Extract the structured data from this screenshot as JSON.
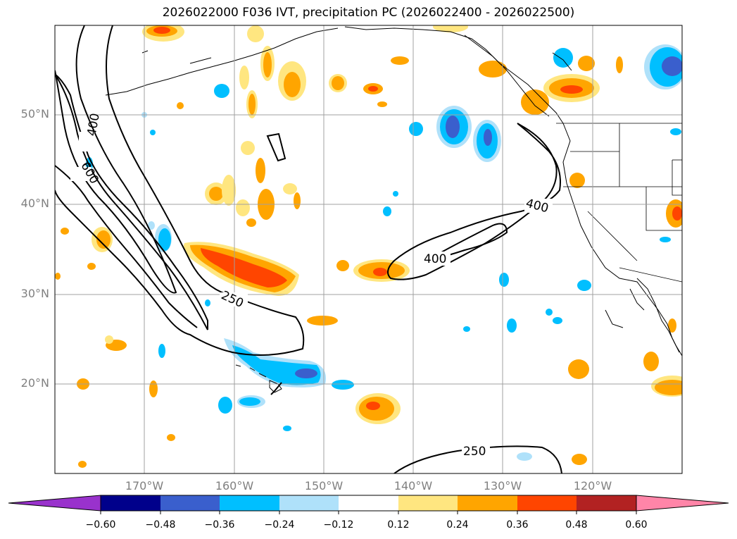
{
  "title": "2026022000 F036 IVT, precipitation PC (2026022400 - 2026022500)",
  "lat_labels": [
    "50°N",
    "40°N",
    "30°N",
    "20°N"
  ],
  "lon_labels": [
    "170°W",
    "160°W",
    "150°W",
    "140°W",
    "130°W",
    "120°W"
  ],
  "ivt_contour_labels": [
    "400",
    "600",
    "250",
    "400",
    "400",
    "250"
  ],
  "colorbar": {
    "ticks": [
      "−0.60",
      "−0.48",
      "−0.36",
      "−0.24",
      "−0.12",
      "0.12",
      "0.24",
      "0.36",
      "0.48",
      "0.60"
    ],
    "colors": [
      "#9932cc",
      "#00008b",
      "#3a5fcd",
      "#00bfff",
      "#afe1fa",
      "#ffffff",
      "#ffe680",
      "#ffa500",
      "#ff4500",
      "#b22222",
      "#ff85a8"
    ]
  }
}
